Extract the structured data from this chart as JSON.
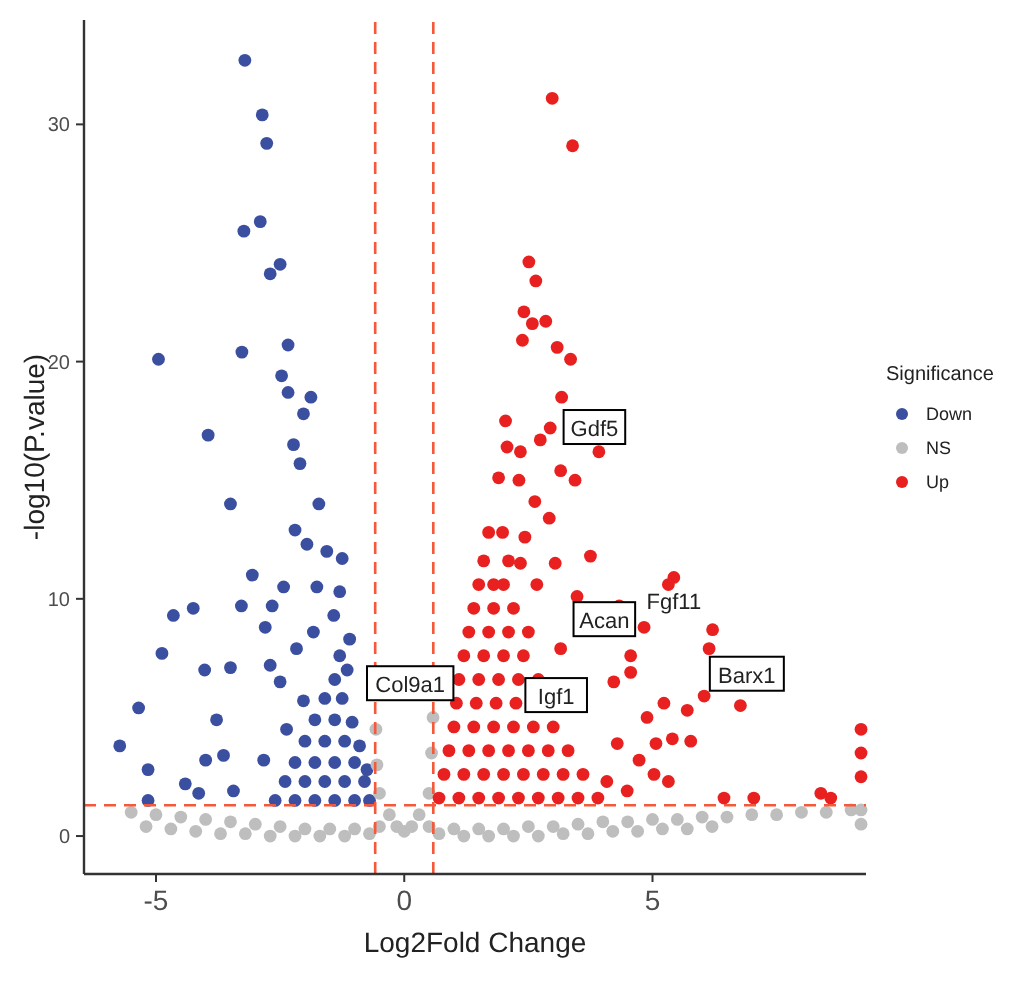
{
  "chart_data": {
    "type": "scatter",
    "xlabel": "Log2Fold Change",
    "ylabel": "-log10(P.value)",
    "legend_title": "Significance",
    "legend": "right",
    "grid": false,
    "marker": "circle",
    "xlim": [
      -6.45,
      9.3
    ],
    "ylim": [
      -1.6,
      34.4
    ],
    "xticks": [
      -5,
      0,
      5
    ],
    "yticks": [
      0,
      10,
      20,
      30
    ],
    "ref_lines": [
      {
        "axis": "x",
        "value": -0.585,
        "color": "#f4593a",
        "line_style": "dashed"
      },
      {
        "axis": "x",
        "value": 0.585,
        "color": "#f4593a",
        "line_style": "dashed"
      },
      {
        "axis": "y",
        "value": 1.3,
        "color": "#f4593a",
        "line_style": "dashed"
      }
    ],
    "annotations": [
      {
        "text": "Col9a1",
        "x": 0.12,
        "y": 6.4
      },
      {
        "text": "Gdf5",
        "x": 3.83,
        "y": 17.2
      },
      {
        "text": "Acan",
        "x": 4.03,
        "y": 9.1
      },
      {
        "text": "Fgf11",
        "x": 5.43,
        "y": 10.9
      },
      {
        "text": "Igf1",
        "x": 3.06,
        "y": 5.9
      },
      {
        "text": "Barx1",
        "x": 6.9,
        "y": 6.8
      }
    ],
    "series": [
      {
        "name": "Down",
        "color": "#3a4f9f",
        "x": [
          -3.21,
          -2.86,
          -2.77,
          -3.23,
          -2.9,
          -2.7,
          -2.5,
          -4.95,
          -3.27,
          -2.34,
          -2.47,
          -2.34,
          -1.88,
          -2.03,
          -3.95,
          -2.23,
          -2.1,
          -3.5,
          -1.72,
          -2.2,
          -1.96,
          -1.56,
          -3.06,
          -1.76,
          -2.43,
          -4.65,
          -4.25,
          -3.28,
          -2.66,
          -2.8,
          -4.88,
          -4.02,
          -3.5,
          -5.35,
          -3.78,
          -5.73,
          -4.0,
          -3.64,
          -5.16,
          -4.41,
          -4.14,
          -5.16,
          -3.44,
          -2.83,
          -2.37,
          -2.03,
          -2.5,
          -2.7,
          -2.17,
          -1.83,
          -1.42,
          -2.6,
          -2.2,
          -1.8,
          -1.4,
          -1.0,
          -0.7,
          -2.4,
          -2.0,
          -1.6,
          -1.2,
          -0.8,
          -2.2,
          -1.8,
          -1.4,
          -1.0,
          -0.75,
          -2.0,
          -1.6,
          -1.2,
          -0.9,
          -1.8,
          -1.4,
          -1.05,
          -1.6,
          -1.25,
          -1.4,
          -1.15,
          -1.3,
          -1.1,
          -1.3,
          -1.25
        ],
        "values": [
          32.7,
          30.4,
          29.2,
          25.5,
          25.9,
          23.7,
          24.1,
          20.1,
          20.4,
          20.7,
          19.4,
          18.7,
          18.5,
          17.8,
          16.9,
          16.5,
          15.7,
          14.0,
          14.0,
          12.9,
          12.3,
          12.0,
          11.0,
          10.5,
          10.5,
          9.3,
          9.6,
          9.7,
          9.7,
          8.8,
          7.7,
          7.0,
          7.1,
          5.4,
          4.9,
          3.8,
          3.2,
          3.4,
          2.8,
          2.2,
          1.8,
          1.5,
          1.9,
          3.2,
          4.5,
          5.7,
          6.5,
          7.2,
          7.9,
          8.6,
          9.3,
          1.5,
          1.5,
          1.5,
          1.5,
          1.5,
          1.5,
          2.3,
          2.3,
          2.3,
          2.3,
          2.3,
          3.1,
          3.1,
          3.1,
          3.1,
          2.8,
          4.0,
          4.0,
          4.0,
          3.8,
          4.9,
          4.9,
          4.8,
          5.8,
          5.8,
          6.6,
          7.0,
          7.6,
          8.3,
          10.3,
          11.7
        ]
      },
      {
        "name": "NS",
        "color": "#bebebe",
        "x": [
          -5.5,
          -5.0,
          -4.5,
          -4.0,
          -3.5,
          -3.0,
          -2.5,
          -2.0,
          -1.5,
          -1.0,
          -0.5,
          0.5,
          1.0,
          1.5,
          2.0,
          2.5,
          3.0,
          3.5,
          4.0,
          4.5,
          5.0,
          5.5,
          6.0,
          6.5,
          7.0,
          7.5,
          8.0,
          8.5,
          9.0,
          -5.2,
          -4.7,
          -4.2,
          -3.7,
          -3.2,
          -2.7,
          -2.2,
          -1.7,
          -1.2,
          -0.7,
          0.7,
          1.2,
          1.7,
          2.2,
          2.7,
          3.2,
          3.7,
          4.2,
          4.7,
          5.2,
          5.7,
          6.2,
          -0.5,
          -0.3,
          -0.15,
          0,
          0.15,
          0.3,
          0.5,
          -0.55,
          0.55,
          0.58,
          -0.57,
          9.2,
          9.2
        ],
        "values": [
          1.0,
          0.9,
          0.8,
          0.7,
          0.6,
          0.5,
          0.4,
          0.3,
          0.3,
          0.3,
          0.4,
          0.4,
          0.3,
          0.3,
          0.3,
          0.4,
          0.4,
          0.5,
          0.6,
          0.6,
          0.7,
          0.7,
          0.8,
          0.8,
          0.9,
          0.9,
          1.0,
          1.0,
          1.1,
          0.4,
          0.3,
          0.2,
          0.1,
          0.1,
          0.0,
          0.0,
          0.0,
          0.0,
          0.1,
          0.1,
          0.0,
          0.0,
          0.0,
          0.0,
          0.1,
          0.1,
          0.2,
          0.2,
          0.3,
          0.3,
          0.4,
          1.8,
          0.9,
          0.4,
          0.2,
          0.4,
          0.9,
          1.8,
          3.0,
          3.5,
          5.0,
          4.5,
          0.5,
          1.1
        ]
      },
      {
        "name": "Up",
        "color": "#e8201f",
        "x": [
          2.98,
          3.39,
          2.51,
          2.65,
          2.41,
          2.85,
          2.58,
          2.38,
          3.08,
          3.35,
          3.17,
          2.94,
          2.74,
          2.04,
          2.07,
          2.34,
          3.92,
          3.15,
          3.44,
          1.9,
          2.31,
          2.63,
          2.92,
          1.98,
          2.43,
          3.75,
          3.04,
          2.34,
          5.43,
          5.32,
          1.8,
          2.67,
          3.48,
          4.33,
          4.83,
          6.21,
          3.15,
          6.14,
          4.56,
          4.22,
          4.56,
          6.04,
          6.77,
          5.23,
          5.7,
          4.89,
          4.29,
          5.07,
          5.4,
          5.77,
          4.73,
          5.03,
          5.32,
          4.08,
          4.49,
          6.44,
          7.04,
          8.39,
          8.59,
          0.7,
          1.1,
          1.5,
          1.9,
          2.3,
          2.7,
          3.1,
          3.5,
          3.9,
          0.8,
          1.2,
          1.6,
          2.0,
          2.4,
          2.8,
          3.2,
          3.6,
          0.9,
          1.3,
          1.7,
          2.1,
          2.5,
          2.9,
          3.3,
          1.0,
          1.4,
          1.8,
          2.2,
          2.6,
          3.0,
          1.05,
          1.45,
          1.85,
          2.25,
          1.1,
          1.5,
          1.9,
          2.3,
          2.7,
          1.2,
          1.6,
          2.0,
          2.4,
          1.3,
          1.7,
          2.1,
          2.5,
          1.4,
          1.8,
          2.2,
          1.5,
          2.0,
          1.6,
          2.1,
          1.7,
          9.2,
          9.2,
          9.2
        ],
        "values": [
          31.1,
          29.1,
          24.2,
          23.4,
          22.1,
          21.7,
          21.6,
          20.9,
          20.6,
          20.1,
          18.5,
          17.2,
          16.7,
          17.5,
          16.4,
          16.2,
          16.2,
          15.4,
          15.0,
          15.1,
          15.0,
          14.1,
          13.4,
          12.8,
          12.6,
          11.8,
          11.5,
          11.5,
          10.9,
          10.6,
          10.6,
          10.6,
          10.1,
          9.7,
          8.8,
          8.7,
          7.9,
          7.9,
          7.6,
          6.5,
          6.9,
          5.9,
          5.5,
          5.6,
          5.3,
          5.0,
          3.9,
          3.9,
          4.1,
          4.0,
          3.2,
          2.6,
          2.3,
          2.3,
          1.9,
          1.6,
          1.6,
          1.8,
          1.6,
          1.6,
          1.6,
          1.6,
          1.6,
          1.6,
          1.6,
          1.6,
          1.6,
          1.6,
          2.6,
          2.6,
          2.6,
          2.6,
          2.6,
          2.6,
          2.6,
          2.6,
          3.6,
          3.6,
          3.6,
          3.6,
          3.6,
          3.6,
          3.6,
          4.6,
          4.6,
          4.6,
          4.6,
          4.6,
          4.6,
          5.6,
          5.6,
          5.6,
          5.6,
          6.6,
          6.6,
          6.6,
          6.6,
          6.6,
          7.6,
          7.6,
          7.6,
          7.6,
          8.6,
          8.6,
          8.6,
          8.6,
          9.6,
          9.6,
          9.6,
          10.6,
          10.6,
          11.6,
          11.6,
          12.8,
          2.5,
          3.5,
          4.5
        ]
      }
    ]
  }
}
